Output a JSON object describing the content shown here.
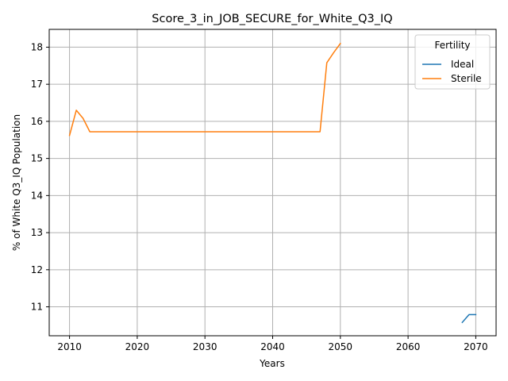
{
  "chart_data": {
    "type": "line",
    "title": "Score_3_in_JOB_SECURE_for_White_Q3_IQ",
    "xlabel": "Years",
    "ylabel": "% of White Q3_IQ Population",
    "xlim": [
      2007,
      2073
    ],
    "ylim": [
      10.22,
      18.48
    ],
    "xticks": [
      2010,
      2020,
      2030,
      2040,
      2050,
      2060,
      2070
    ],
    "yticks": [
      11,
      12,
      13,
      14,
      15,
      16,
      17,
      18
    ],
    "grid": true,
    "legend": {
      "title": "Fertility",
      "placement": "top-right"
    },
    "series": [
      {
        "name": "Ideal",
        "color": "#1f77b4",
        "points": [
          [
            2068,
            10.58
          ],
          [
            2069,
            10.79
          ],
          [
            2070,
            10.79
          ]
        ]
      },
      {
        "name": "Sterile",
        "color": "#ff7f0e",
        "points": [
          [
            2010,
            15.62
          ],
          [
            2011,
            16.3
          ],
          [
            2012,
            16.08
          ],
          [
            2013,
            15.72
          ],
          [
            2014,
            15.72
          ],
          [
            2015,
            15.72
          ],
          [
            2016,
            15.72
          ],
          [
            2017,
            15.72
          ],
          [
            2018,
            15.72
          ],
          [
            2019,
            15.72
          ],
          [
            2020,
            15.72
          ],
          [
            2021,
            15.72
          ],
          [
            2022,
            15.72
          ],
          [
            2023,
            15.72
          ],
          [
            2024,
            15.72
          ],
          [
            2025,
            15.72
          ],
          [
            2026,
            15.72
          ],
          [
            2027,
            15.72
          ],
          [
            2028,
            15.72
          ],
          [
            2029,
            15.72
          ],
          [
            2030,
            15.72
          ],
          [
            2031,
            15.72
          ],
          [
            2032,
            15.72
          ],
          [
            2033,
            15.72
          ],
          [
            2034,
            15.72
          ],
          [
            2035,
            15.72
          ],
          [
            2036,
            15.72
          ],
          [
            2037,
            15.72
          ],
          [
            2038,
            15.72
          ],
          [
            2039,
            15.72
          ],
          [
            2040,
            15.72
          ],
          [
            2041,
            15.72
          ],
          [
            2042,
            15.72
          ],
          [
            2043,
            15.72
          ],
          [
            2044,
            15.72
          ],
          [
            2045,
            15.72
          ],
          [
            2046,
            15.72
          ],
          [
            2047,
            15.72
          ],
          [
            2048,
            17.58
          ],
          [
            2049,
            17.85
          ],
          [
            2050,
            18.1
          ]
        ]
      }
    ]
  }
}
